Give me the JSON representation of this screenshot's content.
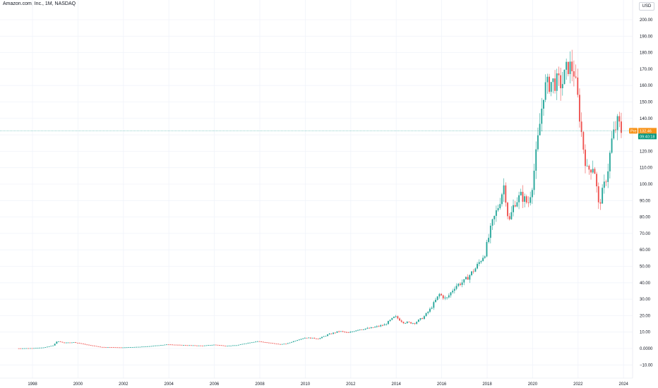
{
  "header": {
    "symbol_title": "Amazon.com, Inc., 1M, NASDAQ",
    "currency": "USD"
  },
  "colors": {
    "up": "#26a69a",
    "down": "#ef5350",
    "last_price_tag": "#f7931a",
    "countdown_tag": "#089981",
    "grid": "#f0f3fa"
  },
  "price_tag": {
    "label": "Pre",
    "price": "132.46",
    "countdown": "09:40:18"
  },
  "chart_data": {
    "type": "candlestick",
    "title": "Amazon.com, Inc., 1M, NASDAQ",
    "ylim": [
      -10,
      200
    ],
    "y_ticks": [
      "−10.00",
      "0.0000",
      "10.00",
      "20.00",
      "30.00",
      "40.00",
      "50.00",
      "60.00",
      "70.00",
      "80.00",
      "90.00",
      "100.00",
      "110.00",
      "120.00",
      "130.00",
      "140.00",
      "150.00",
      "160.00",
      "170.00",
      "180.00",
      "190.00",
      "200.00"
    ],
    "y_tick_values": [
      -10,
      0,
      10,
      20,
      30,
      40,
      50,
      60,
      70,
      80,
      90,
      100,
      110,
      120,
      130,
      140,
      150,
      160,
      170,
      180,
      190,
      200
    ],
    "x_ticks": [
      "1998",
      "2000",
      "2002",
      "2004",
      "2006",
      "2008",
      "2010",
      "2012",
      "2014",
      "2016",
      "2018",
      "2020",
      "2022",
      "2024"
    ],
    "x_tick_values": [
      1998,
      2000,
      2002,
      2004,
      2006,
      2008,
      2010,
      2012,
      2014,
      2016,
      2018,
      2020,
      2022,
      2024
    ],
    "xlim": [
      1996.6,
      2024.35
    ],
    "last_price": 132.46,
    "price_series": [
      [
        1997.4,
        0.1
      ],
      [
        1998.0,
        0.2
      ],
      [
        1998.5,
        0.6
      ],
      [
        1998.9,
        1.8
      ],
      [
        1999.1,
        4.5
      ],
      [
        1999.4,
        3.4
      ],
      [
        1999.8,
        3.8
      ],
      [
        2000.0,
        3.4
      ],
      [
        2000.3,
        2.5
      ],
      [
        2000.7,
        1.6
      ],
      [
        2001.0,
        0.9
      ],
      [
        2001.5,
        0.8
      ],
      [
        2001.9,
        0.6
      ],
      [
        2002.5,
        0.9
      ],
      [
        2003.0,
        1.2
      ],
      [
        2003.5,
        1.9
      ],
      [
        2004.0,
        2.5
      ],
      [
        2004.5,
        2.1
      ],
      [
        2005.0,
        1.9
      ],
      [
        2005.5,
        1.7
      ],
      [
        2006.0,
        2.3
      ],
      [
        2006.5,
        1.6
      ],
      [
        2007.0,
        2.0
      ],
      [
        2007.5,
        3.5
      ],
      [
        2007.9,
        4.4
      ],
      [
        2008.3,
        3.6
      ],
      [
        2008.9,
        2.5
      ],
      [
        2009.2,
        3.0
      ],
      [
        2009.7,
        5.5
      ],
      [
        2010.0,
        6.6
      ],
      [
        2010.6,
        6.0
      ],
      [
        2011.0,
        8.5
      ],
      [
        2011.5,
        10.5
      ],
      [
        2011.9,
        9.5
      ],
      [
        2012.3,
        11.5
      ],
      [
        2012.9,
        12.5
      ],
      [
        2013.5,
        14.5
      ],
      [
        2013.95,
        19.5
      ],
      [
        2014.3,
        16.0
      ],
      [
        2014.8,
        15.5
      ],
      [
        2015.2,
        19.0
      ],
      [
        2015.5,
        24.0
      ],
      [
        2015.9,
        33.0
      ],
      [
        2016.2,
        30.0
      ],
      [
        2016.6,
        38.0
      ],
      [
        2017.0,
        41.0
      ],
      [
        2017.5,
        49.0
      ],
      [
        2017.9,
        58.0
      ],
      [
        2018.2,
        75.0
      ],
      [
        2018.5,
        87.0
      ],
      [
        2018.75,
        100.0
      ],
      [
        2018.95,
        76.0
      ],
      [
        2019.2,
        89.0
      ],
      [
        2019.5,
        93.0
      ],
      [
        2019.8,
        88.0
      ],
      [
        2020.0,
        101.0
      ],
      [
        2020.2,
        123.0
      ],
      [
        2020.5,
        158.0
      ],
      [
        2020.8,
        162.0
      ],
      [
        2021.0,
        162.0
      ],
      [
        2021.3,
        161.0
      ],
      [
        2021.55,
        172.0
      ],
      [
        2021.8,
        170.0
      ],
      [
        2022.0,
        150.0
      ],
      [
        2022.2,
        125.0
      ],
      [
        2022.4,
        108.0
      ],
      [
        2022.7,
        112.0
      ],
      [
        2022.9,
        87.0
      ],
      [
        2023.1,
        96.0
      ],
      [
        2023.3,
        108.0
      ],
      [
        2023.5,
        128.0
      ],
      [
        2023.75,
        138.0
      ],
      [
        2023.9,
        132.46
      ]
    ]
  }
}
